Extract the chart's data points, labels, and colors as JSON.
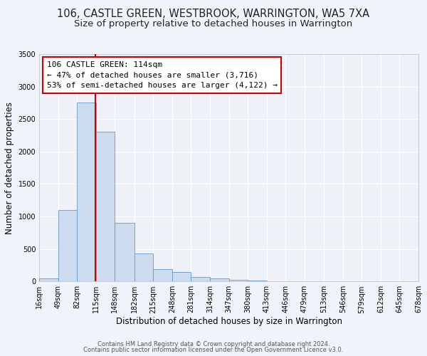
{
  "title": "106, CASTLE GREEN, WESTBROOK, WARRINGTON, WA5 7XA",
  "subtitle": "Size of property relative to detached houses in Warrington",
  "xlabel": "Distribution of detached houses by size in Warrington",
  "ylabel": "Number of detached properties",
  "bin_edges": [
    16,
    49,
    82,
    115,
    148,
    182,
    215,
    248,
    281,
    314,
    347,
    380,
    413,
    446,
    479,
    513,
    546,
    579,
    612,
    645,
    678
  ],
  "bar_heights": [
    50,
    1100,
    2750,
    2300,
    900,
    430,
    190,
    140,
    70,
    50,
    30,
    10,
    5,
    2,
    1,
    1,
    0,
    0,
    0,
    0
  ],
  "bar_color": "#ccdcee",
  "bar_edge_color": "#6699cc",
  "property_size": 114,
  "vline_color": "#cc0000",
  "annotation_text": "106 CASTLE GREEN: 114sqm\n← 47% of detached houses are smaller (3,716)\n53% of semi-detached houses are larger (4,122) →",
  "annotation_box_color": "#ffffff",
  "annotation_box_edge_color": "#cc0000",
  "ylim": [
    0,
    3500
  ],
  "yticks": [
    0,
    500,
    1000,
    1500,
    2000,
    2500,
    3000,
    3500
  ],
  "footer_line1": "Contains HM Land Registry data © Crown copyright and database right 2024.",
  "footer_line2": "Contains public sector information licensed under the Open Government Licence v3.0.",
  "bg_color": "#f0f4fa",
  "plot_bg_color": "#eef2f8",
  "grid_color": "#ffffff",
  "title_fontsize": 10.5,
  "subtitle_fontsize": 9.5,
  "axis_label_fontsize": 8.5,
  "tick_fontsize": 7,
  "annotation_fontsize": 8,
  "footer_fontsize": 6
}
